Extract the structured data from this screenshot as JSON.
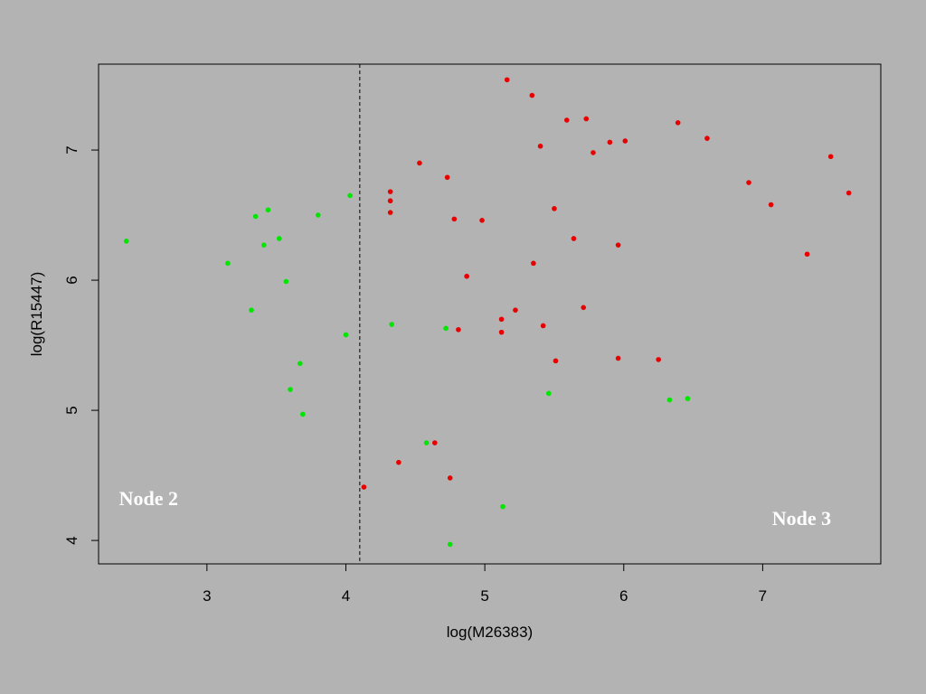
{
  "background": "#b3b3b3",
  "chart_data": {
    "type": "scatter",
    "title": "",
    "xlabel": "log(M26383)",
    "ylabel": "log(R15447)",
    "xlim": [
      2.22,
      7.85
    ],
    "ylim": [
      3.82,
      7.66
    ],
    "x_ticks": [
      3,
      4,
      5,
      6,
      7
    ],
    "y_ticks": [
      4,
      5,
      6,
      7
    ],
    "grid": false,
    "split_line": {
      "x": 4.1,
      "style": "dashed",
      "color": "#000000"
    },
    "node_labels": [
      {
        "text": "Node 2",
        "x": 2.58,
        "y": 4.27
      },
      {
        "text": "Node 3",
        "x": 7.28,
        "y": 4.12
      }
    ],
    "series": [
      {
        "color": "#00e600",
        "points": [
          [
            2.42,
            6.3
          ],
          [
            3.15,
            6.13
          ],
          [
            3.35,
            6.49
          ],
          [
            3.44,
            6.54
          ],
          [
            3.41,
            6.27
          ],
          [
            3.52,
            6.32
          ],
          [
            3.57,
            5.99
          ],
          [
            3.32,
            5.77
          ],
          [
            3.8,
            6.5
          ],
          [
            4.03,
            6.65
          ],
          [
            4.0,
            5.58
          ],
          [
            3.67,
            5.36
          ],
          [
            3.6,
            5.16
          ],
          [
            3.69,
            4.97
          ],
          [
            4.33,
            5.66
          ],
          [
            4.72,
            5.63
          ],
          [
            4.58,
            4.75
          ],
          [
            5.13,
            4.26
          ],
          [
            4.75,
            3.97
          ],
          [
            5.46,
            5.13
          ],
          [
            6.33,
            5.08
          ],
          [
            6.46,
            5.09
          ]
        ]
      },
      {
        "color": "#e60000",
        "points": [
          [
            5.16,
            7.54
          ],
          [
            5.34,
            7.42
          ],
          [
            5.59,
            7.23
          ],
          [
            5.73,
            7.24
          ],
          [
            5.4,
            7.03
          ],
          [
            5.78,
            6.98
          ],
          [
            5.9,
            7.06
          ],
          [
            6.01,
            7.07
          ],
          [
            6.39,
            7.21
          ],
          [
            6.6,
            7.09
          ],
          [
            4.53,
            6.9
          ],
          [
            4.73,
            6.79
          ],
          [
            4.32,
            6.68
          ],
          [
            4.32,
            6.61
          ],
          [
            4.32,
            6.52
          ],
          [
            4.78,
            6.47
          ],
          [
            4.98,
            6.46
          ],
          [
            5.5,
            6.55
          ],
          [
            5.64,
            6.32
          ],
          [
            5.96,
            6.27
          ],
          [
            6.9,
            6.75
          ],
          [
            7.06,
            6.58
          ],
          [
            7.49,
            6.95
          ],
          [
            7.62,
            6.67
          ],
          [
            7.32,
            6.2
          ],
          [
            5.35,
            6.13
          ],
          [
            4.87,
            6.03
          ],
          [
            5.22,
            5.77
          ],
          [
            5.12,
            5.7
          ],
          [
            5.71,
            5.79
          ],
          [
            5.42,
            5.65
          ],
          [
            4.81,
            5.62
          ],
          [
            5.12,
            5.6
          ],
          [
            5.51,
            5.38
          ],
          [
            5.96,
            5.4
          ],
          [
            6.25,
            5.39
          ],
          [
            4.64,
            4.75
          ],
          [
            4.38,
            4.6
          ],
          [
            4.75,
            4.48
          ],
          [
            4.13,
            4.41
          ]
        ]
      }
    ]
  }
}
